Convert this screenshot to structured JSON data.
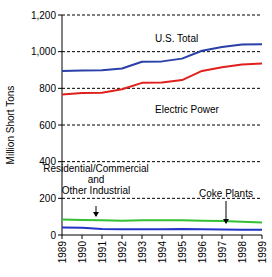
{
  "chart_data": {
    "type": "line",
    "y_label": "Million Short Tons",
    "x": [
      1989,
      1990,
      1991,
      1992,
      1993,
      1994,
      1995,
      1996,
      1997,
      1998,
      1999
    ],
    "xlim": [
      1989,
      1999
    ],
    "xticks": [
      1989,
      1990,
      1991,
      1992,
      1993,
      1994,
      1995,
      1996,
      1997,
      1998,
      1999
    ],
    "ylim": [
      0,
      1200
    ],
    "yticks": [
      0,
      200,
      400,
      600,
      800,
      {
        "value": 1000,
        "label": "1,000"
      },
      {
        "value": 1200,
        "label": "1,200"
      }
    ],
    "grid": true,
    "series": [
      {
        "name": "U.S. Total",
        "color": "#2a3fa8",
        "values": [
          895,
          897,
          899,
          908,
          945,
          947,
          962,
          1005,
          1025,
          1039,
          1040
        ]
      },
      {
        "name": "Electric Power",
        "color": "#e0201c",
        "values": [
          767,
          774,
          776,
          795,
          830,
          832,
          845,
          895,
          915,
          930,
          935
        ]
      },
      {
        "name": "Residential/Commercial\nand\nOther Industrial",
        "color": "#33c033",
        "values": [
          85,
          82,
          80,
          78,
          80,
          80,
          80,
          78,
          76,
          72,
          68
        ]
      },
      {
        "name": "Coke Plants",
        "color": "#2233c8",
        "values": [
          41,
          39,
          33,
          32,
          31,
          31,
          33,
          31,
          30,
          28,
          28
        ]
      }
    ]
  }
}
